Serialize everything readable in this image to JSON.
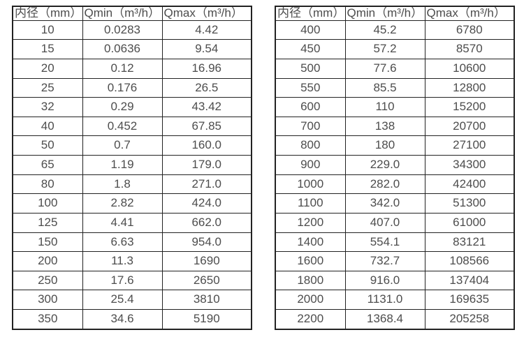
{
  "colors": {
    "border": "#222222",
    "text": "#4d4d4d",
    "background": "#ffffff"
  },
  "tables": [
    {
      "name": "flow-table-small-diameters",
      "headers": [
        "内径（mm）",
        "Qmin（m³/h）",
        "Qmax（m³/h）"
      ],
      "rows": [
        [
          "10",
          "0.0283",
          "4.42"
        ],
        [
          "15",
          "0.0636",
          "9.54"
        ],
        [
          "20",
          "0.12",
          "16.96"
        ],
        [
          "25",
          "0.176",
          "26.5"
        ],
        [
          "32",
          "0.29",
          "43.42"
        ],
        [
          "40",
          "0.452",
          "67.85"
        ],
        [
          "50",
          "0.7",
          "160.0"
        ],
        [
          "65",
          "1.19",
          "179.0"
        ],
        [
          "80",
          "1.8",
          "271.0"
        ],
        [
          "100",
          "2.82",
          "424.0"
        ],
        [
          "125",
          "4.41",
          "662.0"
        ],
        [
          "150",
          "6.63",
          "954.0"
        ],
        [
          "200",
          "11.3",
          "1690"
        ],
        [
          "250",
          "17.6",
          "2650"
        ],
        [
          "300",
          "25.4",
          "3810"
        ],
        [
          "350",
          "34.6",
          "5190"
        ]
      ]
    },
    {
      "name": "flow-table-large-diameters",
      "headers": [
        "内径（mm）",
        "Qmin（m³/h）",
        "Qmax（m³/h）"
      ],
      "rows": [
        [
          "400",
          "45.2",
          "6780"
        ],
        [
          "450",
          "57.2",
          "8570"
        ],
        [
          "500",
          "77.6",
          "10600"
        ],
        [
          "550",
          "85.5",
          "12800"
        ],
        [
          "600",
          "110",
          "15200"
        ],
        [
          "700",
          "138",
          "20700"
        ],
        [
          "800",
          "180",
          "27100"
        ],
        [
          "900",
          "229.0",
          "34300"
        ],
        [
          "1000",
          "282.0",
          "42400"
        ],
        [
          "1100",
          "342.0",
          "51300"
        ],
        [
          "1200",
          "407.0",
          "61000"
        ],
        [
          "1400",
          "554.1",
          "83121"
        ],
        [
          "1600",
          "732.7",
          "108566"
        ],
        [
          "1800",
          "916.0",
          "137404"
        ],
        [
          "2000",
          "1131.0",
          "169635"
        ],
        [
          "2200",
          "1368.4",
          "205258"
        ]
      ]
    }
  ]
}
